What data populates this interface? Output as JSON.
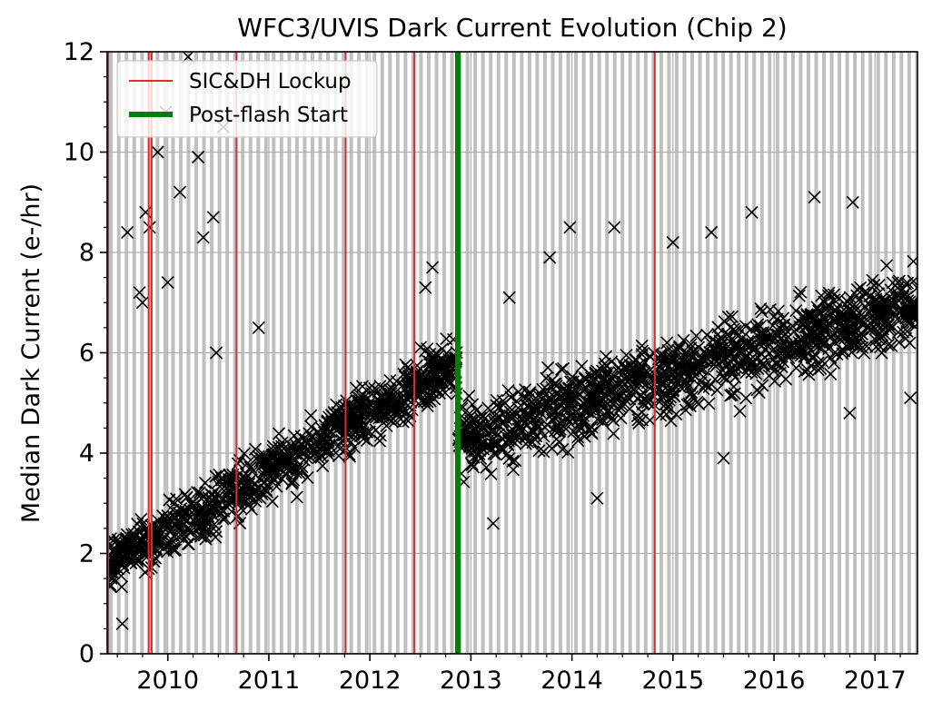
{
  "chart_data": {
    "type": "scatter",
    "title": "WFC3/UVIS Dark Current Evolution (Chip 2)",
    "xlabel": "",
    "ylabel": "Median Dark Current (e-/hr)",
    "xlim": [
      2009.4,
      2017.42
    ],
    "ylim": [
      0,
      12
    ],
    "x_ticks": [
      2010,
      2011,
      2012,
      2013,
      2014,
      2015,
      2016,
      2017
    ],
    "x_tick_labels": [
      "2010",
      "2011",
      "2012",
      "2013",
      "2014",
      "2015",
      "2016",
      "2017"
    ],
    "y_ticks": [
      0,
      2,
      4,
      6,
      8,
      10,
      12
    ],
    "y_tick_labels": [
      "0",
      "2",
      "4",
      "6",
      "8",
      "10",
      "12"
    ],
    "grid": true,
    "legend_position": "upper-left",
    "marker": "x",
    "colors": {
      "points": "#000000",
      "sicdh_lockup": "#e8292b",
      "postflash_start": "#007f00",
      "anneal_band": "#bfbfbf",
      "grid": "#b0b0b0"
    },
    "anneal_band_period_years": 0.0767,
    "anneal_band_width_years": 0.0355,
    "series": [
      {
        "type": "vline",
        "name": "SIC&DH Lockup",
        "color": "#e8292b",
        "x": [
          2009.41,
          2009.81,
          2009.84,
          2010.68,
          2011.76,
          2012.44,
          2014.82
        ]
      },
      {
        "type": "vline",
        "name": "Post-flash Start",
        "color": "#007f00",
        "x": [
          2012.87
        ]
      },
      {
        "type": "scatter",
        "name": "",
        "color": "#000000",
        "trend_segments": [
          {
            "x": [
              2009.42,
              2012.86
            ],
            "y": [
              1.8,
              5.8
            ],
            "spread": 0.7
          },
          {
            "x": [
              2012.88,
              2017.42
            ],
            "y": [
              4.3,
              7.0
            ],
            "spread": 0.9
          }
        ],
        "outliers": [
          {
            "x": 2009.55,
            "y": 0.6
          },
          {
            "x": 2009.6,
            "y": 8.4
          },
          {
            "x": 2009.72,
            "y": 7.2
          },
          {
            "x": 2009.75,
            "y": 7.0
          },
          {
            "x": 2009.78,
            "y": 8.8
          },
          {
            "x": 2009.82,
            "y": 8.5
          },
          {
            "x": 2009.9,
            "y": 10.0
          },
          {
            "x": 2010.0,
            "y": 7.4
          },
          {
            "x": 2010.2,
            "y": 11.9
          },
          {
            "x": 2010.12,
            "y": 9.2
          },
          {
            "x": 2010.3,
            "y": 9.9
          },
          {
            "x": 2010.35,
            "y": 8.3
          },
          {
            "x": 2010.45,
            "y": 8.7
          },
          {
            "x": 2010.55,
            "y": 10.5
          },
          {
            "x": 2010.48,
            "y": 6.0
          },
          {
            "x": 2010.9,
            "y": 6.5
          },
          {
            "x": 2009.98,
            "y": 10.8
          },
          {
            "x": 2012.62,
            "y": 7.7
          },
          {
            "x": 2012.55,
            "y": 7.3
          },
          {
            "x": 2013.38,
            "y": 7.1
          },
          {
            "x": 2013.78,
            "y": 7.9
          },
          {
            "x": 2013.98,
            "y": 8.5
          },
          {
            "x": 2014.42,
            "y": 8.5
          },
          {
            "x": 2015.0,
            "y": 8.2
          },
          {
            "x": 2015.38,
            "y": 8.4
          },
          {
            "x": 2015.78,
            "y": 8.8
          },
          {
            "x": 2016.4,
            "y": 9.1
          },
          {
            "x": 2016.78,
            "y": 9.0
          },
          {
            "x": 2013.22,
            "y": 2.6
          },
          {
            "x": 2014.25,
            "y": 3.1
          },
          {
            "x": 2015.5,
            "y": 3.9
          },
          {
            "x": 2016.75,
            "y": 4.8
          },
          {
            "x": 2017.35,
            "y": 5.1
          }
        ]
      }
    ],
    "legend": [
      {
        "label": "SIC&DH Lockup",
        "color": "#e8292b",
        "style": "thin-line"
      },
      {
        "label": "Post-flash Start",
        "color": "#007f00",
        "style": "thick-line"
      }
    ]
  }
}
